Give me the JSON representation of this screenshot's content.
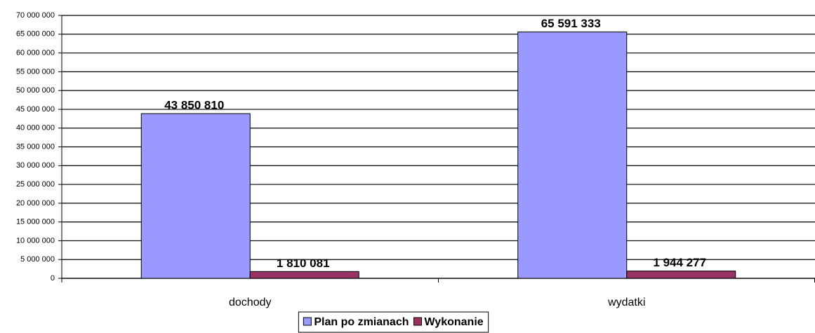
{
  "chart_data": {
    "type": "bar",
    "categories": [
      "dochody",
      "wydatki"
    ],
    "series": [
      {
        "name": "Plan po zmianach",
        "color": "#9999ff",
        "values": [
          43850810,
          65591333
        ],
        "value_labels": [
          "43 850 810",
          "65 591 333"
        ]
      },
      {
        "name": "Wykonanie",
        "color": "#993366",
        "values": [
          1810081,
          1944277
        ],
        "value_labels": [
          "1 810 081",
          "1 944 277"
        ]
      }
    ],
    "ylim": [
      0,
      70000000
    ],
    "yticks": [
      0,
      {
        "value": 5000000,
        "label": "5 000 000"
      },
      {
        "value": 10000000,
        "label": "10 000 000"
      },
      {
        "value": 15000000,
        "label": "15 000 000"
      },
      {
        "value": 20000000,
        "label": "20 000 000"
      },
      {
        "value": 25000000,
        "label": "25 000 000"
      },
      {
        "value": 30000000,
        "label": "30 000 000"
      },
      {
        "value": 35000000,
        "label": "35 000 000"
      },
      {
        "value": 40000000,
        "label": "40 000 000"
      },
      {
        "value": 45000000,
        "label": "45 000 000"
      },
      {
        "value": 50000000,
        "label": "50 000 000"
      },
      {
        "value": 55000000,
        "label": "55 000 000"
      },
      {
        "value": 60000000,
        "label": "60 000 000"
      },
      {
        "value": 65000000,
        "label": "65 000 000"
      },
      {
        "value": 70000000,
        "label": "70 000 000"
      }
    ],
    "grid": true,
    "legend": "bottom"
  }
}
